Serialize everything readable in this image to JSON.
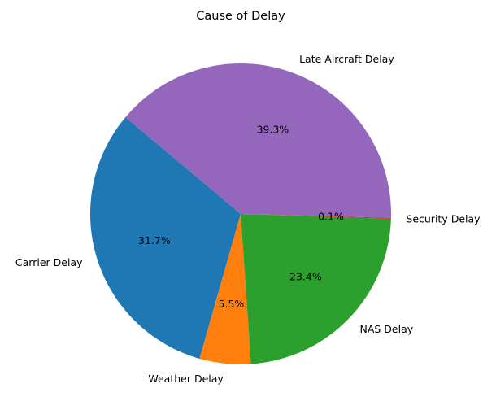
{
  "chart_data": {
    "type": "pie",
    "title": "Cause of Delay",
    "categories": [
      "Carrier Delay",
      "Weather Delay",
      "NAS Delay",
      "Security Delay",
      "Late Aircraft Delay"
    ],
    "values": [
      31.7,
      5.5,
      23.4,
      0.1,
      39.3
    ],
    "percent_labels": [
      "31.7%",
      "5.5%",
      "23.4%",
      "0.1%",
      "39.3%"
    ],
    "colors": [
      "#1f77b4",
      "#ff7f0e",
      "#2ca02c",
      "#d62728",
      "#9467bd"
    ],
    "start_angle_deg": 140,
    "direction": "counterclockwise"
  }
}
